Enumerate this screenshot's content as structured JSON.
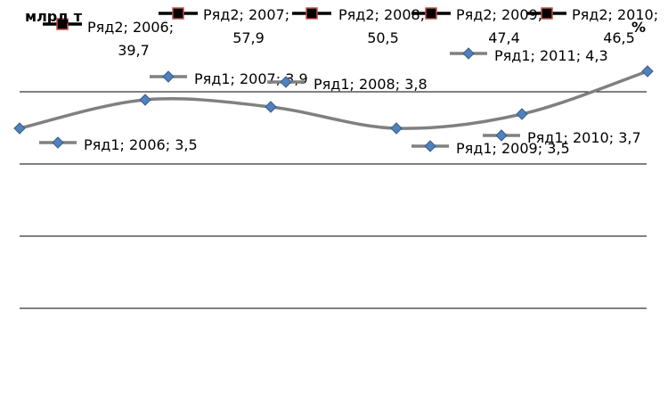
{
  "chart_data": {
    "type": "line",
    "y_axis_left_title": "млрд т",
    "y_axis_right_title": "%",
    "gridlines": true,
    "legend": "none",
    "series": [
      {
        "name": "Ряд1",
        "color": "#808080",
        "marker_color": "#4f81bd",
        "marker": "diamond",
        "x": [
          2006,
          2007,
          2008,
          2009,
          2010,
          2011
        ],
        "values": [
          3.5,
          3.9,
          3.8,
          3.5,
          3.7,
          4.3
        ],
        "labels": [
          "Ряд1; 2006; 3,5",
          "Ряд1; 2007; 3,9",
          "Ряд1; 2008; 3,8",
          "Ряд1; 2009; 3,5",
          "Ряд1; 2010; 3,7",
          "Ряд1; 2011; 4,3"
        ]
      },
      {
        "name": "Ряд2",
        "color": "#000000",
        "marker_color": "#000000",
        "marker_border": "#c0504d",
        "marker": "square",
        "x": [
          2006,
          2007,
          2008,
          2009,
          2010
        ],
        "values": [
          39.7,
          57.9,
          50.5,
          47.4,
          46.5
        ],
        "label_lines": [
          [
            "Ряд2; 2006;",
            "39,7"
          ],
          [
            "Ряд2; 2007;",
            "57,9"
          ],
          [
            "Ряд2; 2008;",
            "50,5"
          ],
          [
            "Ряд2; 2009;",
            "47,4"
          ],
          [
            "Ряд2; 2010;",
            "46,5"
          ]
        ]
      }
    ]
  }
}
